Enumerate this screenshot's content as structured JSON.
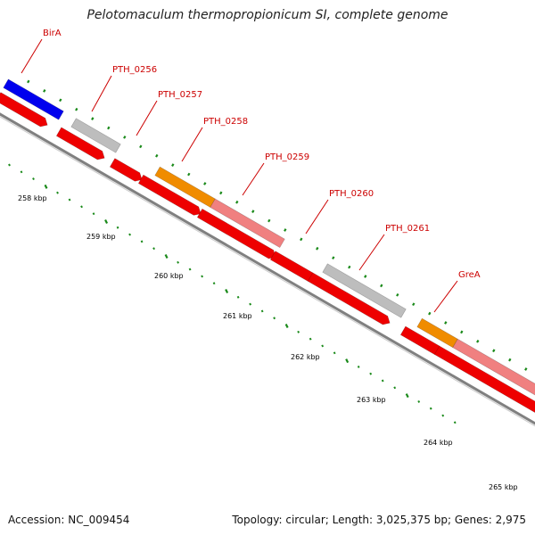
{
  "title": "Pelotomaculum thermopropionicum SI, complete genome",
  "footer": {
    "accession": "Accession: NC_009454",
    "summary": "Topology: circular; Length: 3,025,375 bp; Genes: 2,975"
  },
  "colors": {
    "label": "#cc0000",
    "tick": "#1a8a1a",
    "backbone": "#808080",
    "cds_red": "#ee0000",
    "blue": "#0000ee",
    "grey": "#bdbdbd",
    "orange": "#f08c00",
    "pink": "#f08080"
  },
  "kbp_labels": [
    {
      "kbp": 258,
      "text": "258 kbp"
    },
    {
      "kbp": 259,
      "text": "259 kbp"
    },
    {
      "kbp": 260,
      "text": "260 kbp"
    },
    {
      "kbp": 261,
      "text": "261 kbp"
    },
    {
      "kbp": 262,
      "text": "262 kbp"
    },
    {
      "kbp": 263,
      "text": "263 kbp"
    },
    {
      "kbp": 264,
      "text": "264 kbp"
    },
    {
      "kbp": 265,
      "text": "265 kbp"
    }
  ],
  "gene_labels": [
    {
      "name": "BirA"
    },
    {
      "name": "PTH_0256"
    },
    {
      "name": "PTH_0257"
    },
    {
      "name": "PTH_0258"
    },
    {
      "name": "PTH_0259"
    },
    {
      "name": "PTH_0260"
    },
    {
      "name": "PTH_0261"
    },
    {
      "name": "GreA"
    }
  ],
  "features": [
    {
      "track": "outer",
      "color": "blue"
    },
    {
      "track": "outer",
      "color": "grey"
    },
    {
      "track": "outer",
      "color": "orange"
    },
    {
      "track": "outer",
      "color": "pink"
    },
    {
      "track": "outer",
      "color": "grey"
    },
    {
      "track": "outer",
      "color": "orange"
    },
    {
      "track": "outer",
      "color": "pink"
    },
    {
      "track": "inner",
      "color": "cds_red"
    },
    {
      "track": "inner",
      "color": "cds_red"
    },
    {
      "track": "inner",
      "color": "cds_red"
    },
    {
      "track": "inner",
      "color": "cds_red"
    },
    {
      "track": "inner",
      "color": "cds_red"
    },
    {
      "track": "inner",
      "color": "cds_red"
    },
    {
      "track": "inner",
      "color": "cds_red"
    },
    {
      "track": "inner",
      "color": "cds_red"
    },
    {
      "track": "inner",
      "color": "cds_red"
    }
  ]
}
